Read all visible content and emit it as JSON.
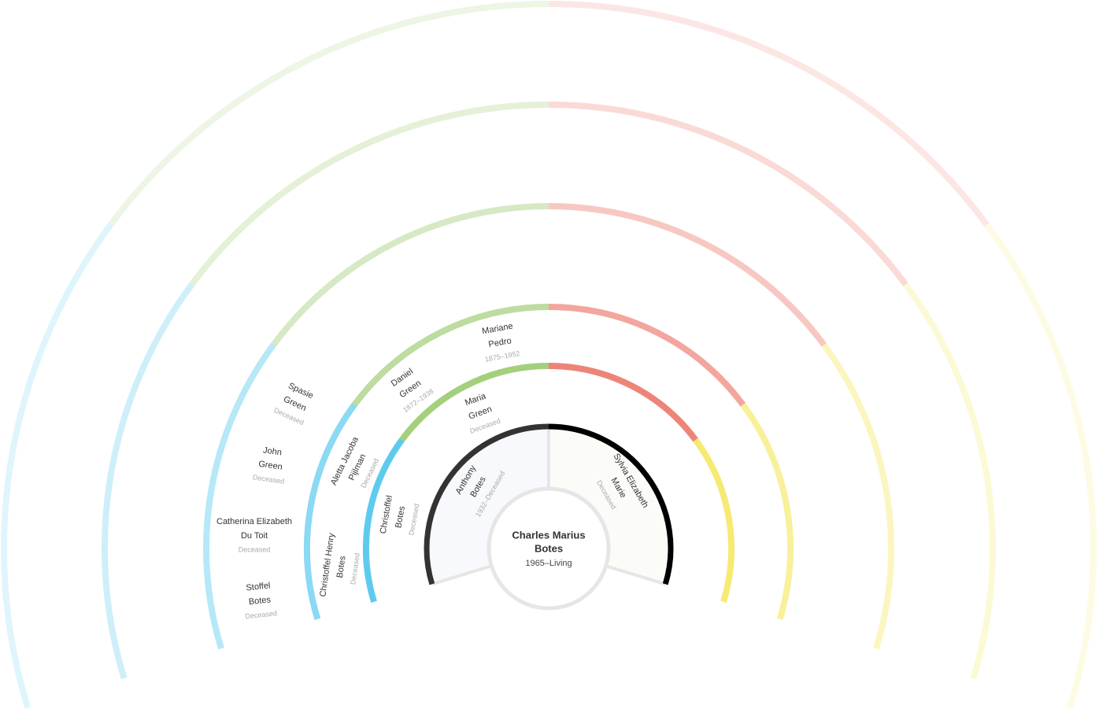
{
  "root": {
    "name_lines": [
      "Charles Marius",
      "Botes"
    ],
    "dates": "1965–Living"
  },
  "people": [
    {
      "name_lines": [
        "Anthony",
        "Botes"
      ],
      "dates": "1932–Deceased"
    },
    {
      "name_lines": [
        "Sylvia Elizabeth",
        "Marie"
      ],
      "dates": "Deceased"
    },
    {
      "name_lines": [
        "Christoffel",
        "Botes"
      ],
      "dates": "Deceased"
    },
    {
      "name_lines": [
        "Maria",
        "Green"
      ],
      "dates": "Deceased"
    },
    {
      "name_lines": [
        "Christoffel Henry",
        "Botes"
      ],
      "dates": "Deceased"
    },
    {
      "name_lines": [
        "Aletta Jacoba",
        "Pijlman"
      ],
      "dates": "Deceased"
    },
    {
      "name_lines": [
        "Daniel",
        "Green"
      ],
      "dates": "1872–1938"
    },
    {
      "name_lines": [
        "Mariane",
        "Pedro"
      ],
      "dates": "1875–1952"
    },
    {
      "name_lines": [
        "Stoffel",
        "Botes"
      ],
      "dates": "Deceased"
    },
    {
      "name_lines": [
        "Catherina Elizabeth",
        "Du Toit"
      ],
      "dates": "Deceased"
    },
    {
      "name_lines": [
        "John",
        "Green"
      ],
      "dates": "Deceased"
    },
    {
      "name_lines": [
        "Spasie",
        "Green"
      ],
      "dates": "Deceased"
    }
  ]
}
